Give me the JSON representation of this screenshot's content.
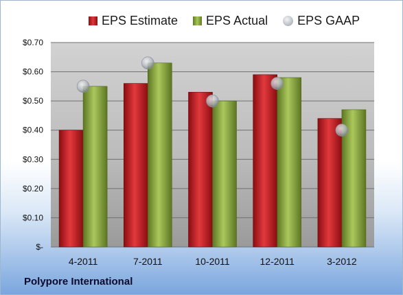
{
  "chart_data": {
    "type": "bar",
    "categories": [
      "4-2011",
      "7-2011",
      "10-2011",
      "12-2011",
      "3-2012"
    ],
    "series": [
      {
        "name": "EPS Estimate",
        "values": [
          0.4,
          0.56,
          0.53,
          0.59,
          0.44
        ],
        "color": "#c8191e"
      },
      {
        "name": "EPS Actual",
        "values": [
          0.55,
          0.63,
          0.5,
          0.58,
          0.47
        ],
        "color": "#8db043"
      },
      {
        "name": "EPS GAAP",
        "values": [
          0.55,
          0.63,
          0.5,
          0.56,
          0.4
        ],
        "color": "#b0b6bf",
        "marker": "circle"
      }
    ],
    "ylim": [
      0,
      0.7
    ],
    "yticks": [
      0,
      0.1,
      0.2,
      0.3,
      0.4,
      0.5,
      0.6,
      0.7
    ],
    "ytick_labels": [
      "$-",
      "$0.10",
      "$0.20",
      "$0.30",
      "$0.40",
      "$0.50",
      "$0.60",
      "$0.70"
    ],
    "grid": true,
    "legend_position": "top"
  },
  "company": "Polypore International"
}
